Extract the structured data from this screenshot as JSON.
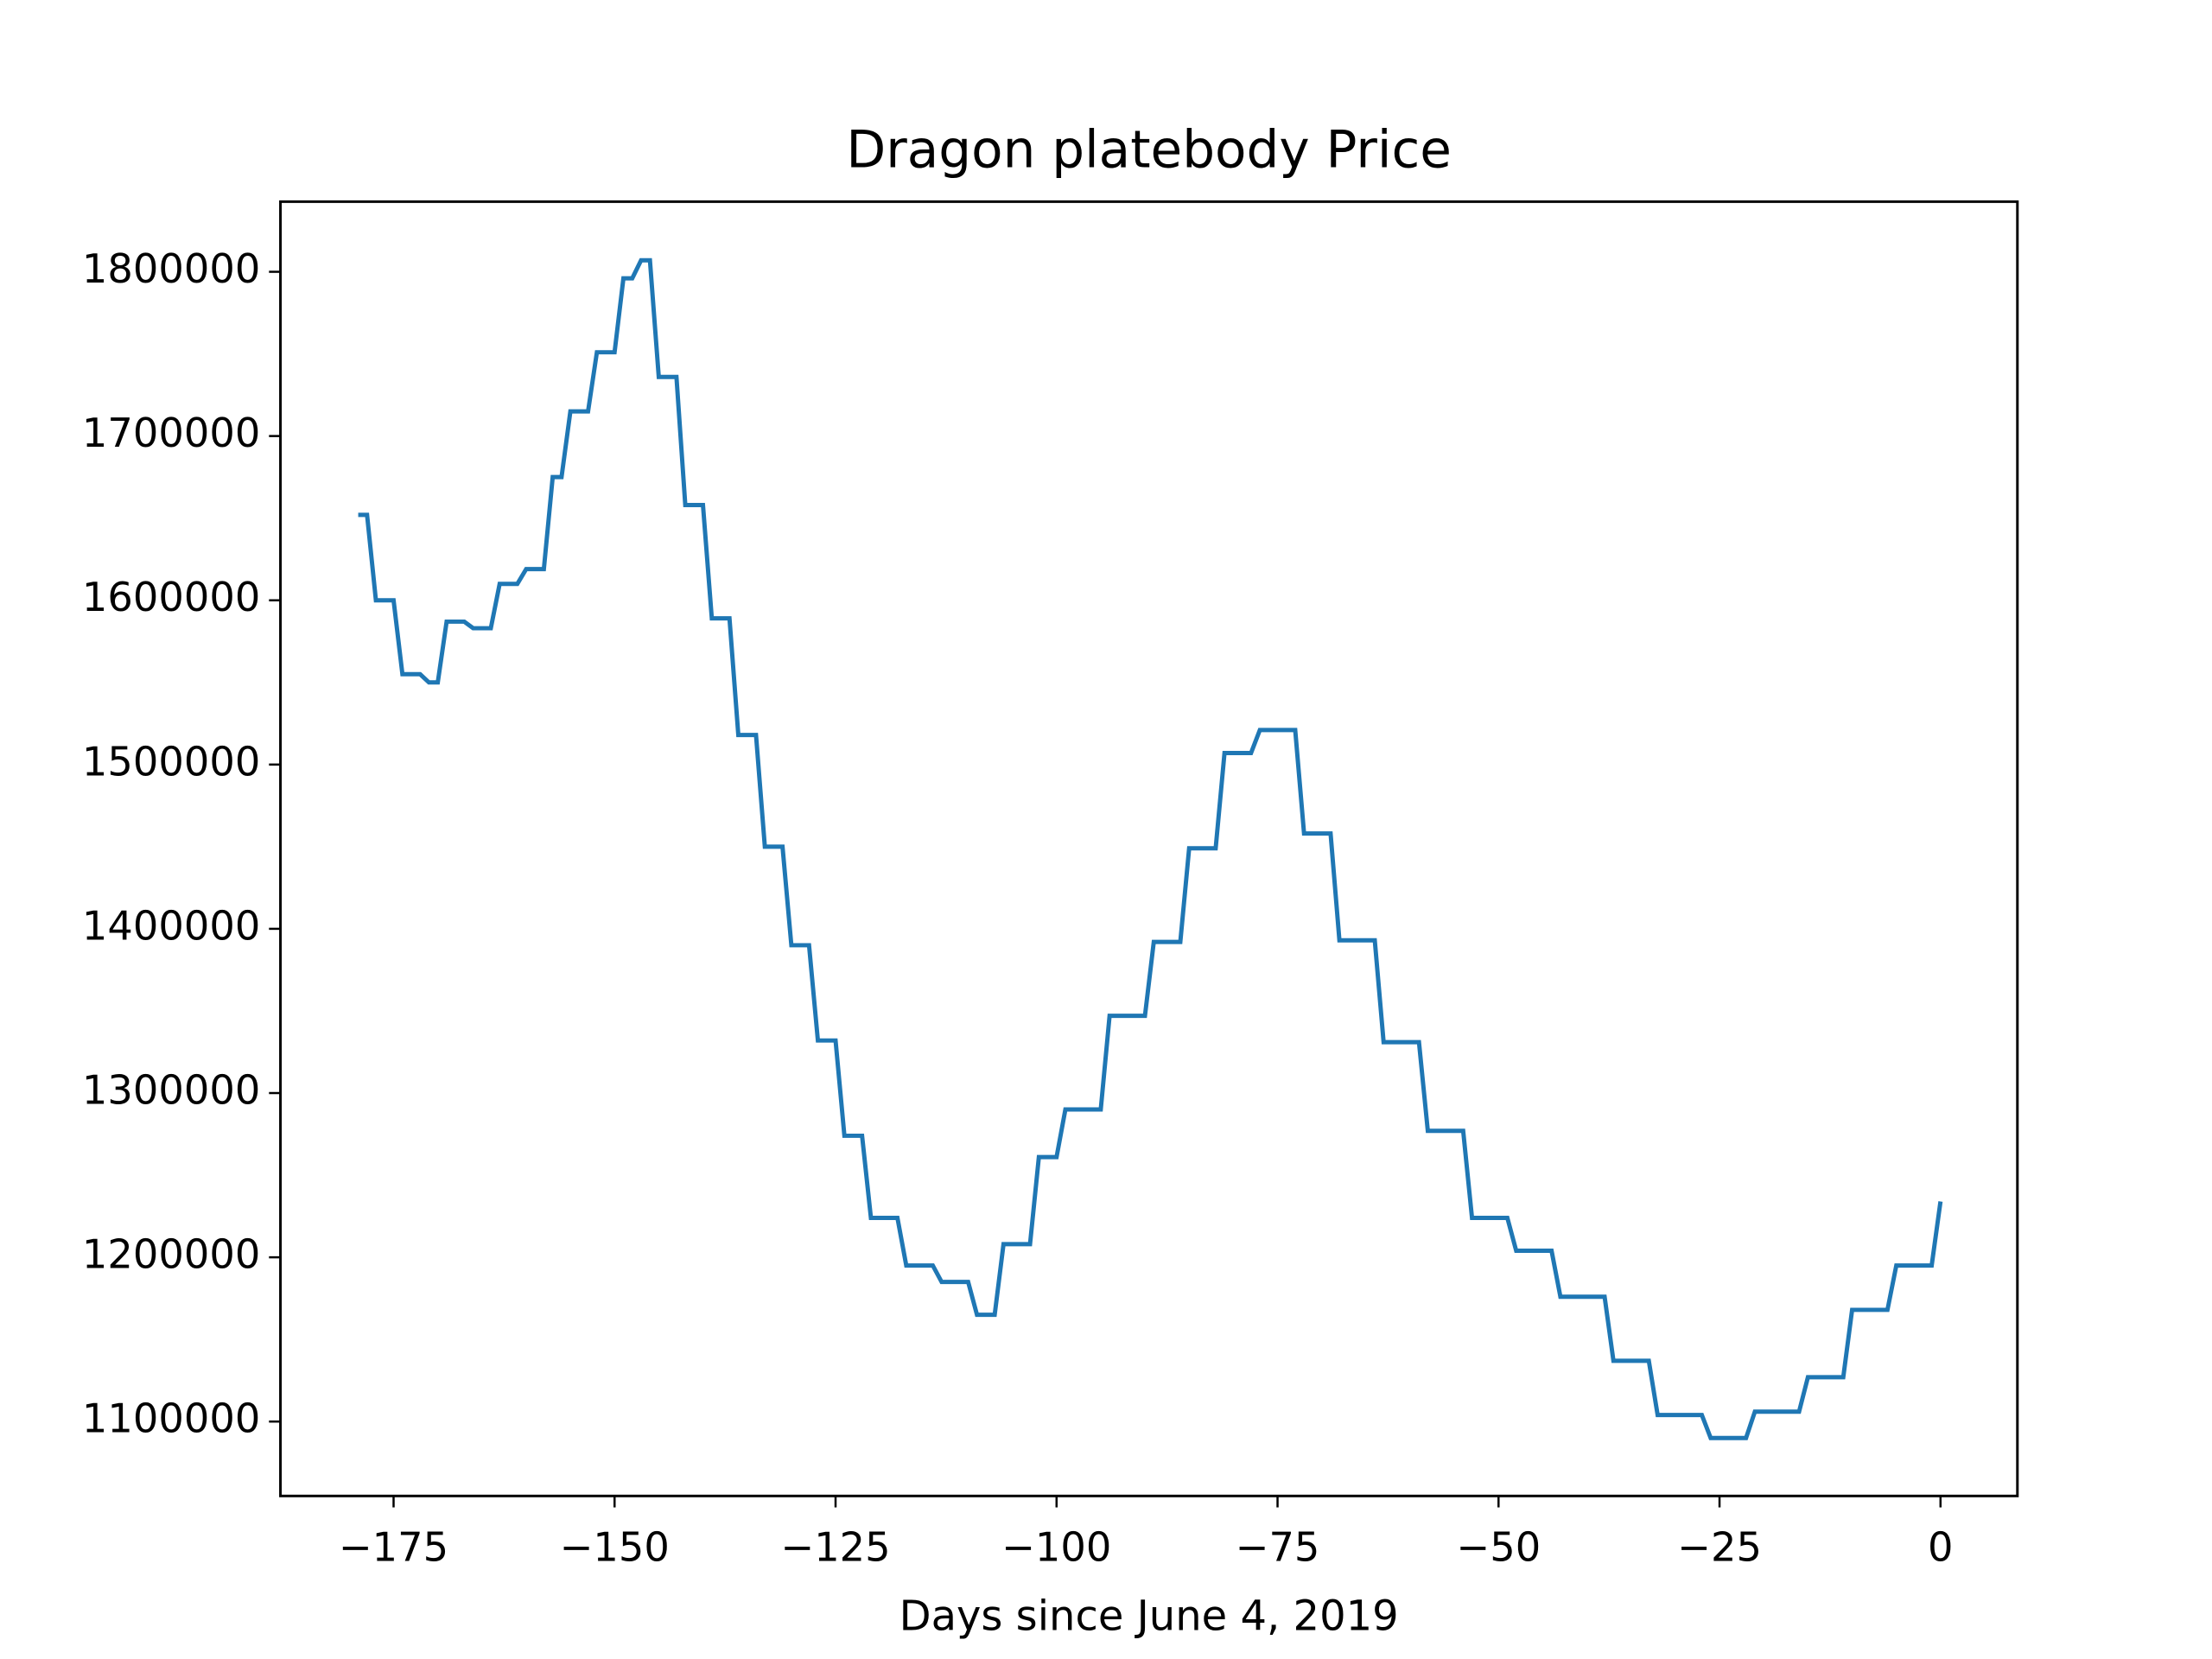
{
  "chart_data": {
    "type": "line",
    "title": "Dragon platebody Price",
    "xlabel": "Days since June 4, 2019",
    "xlim": [
      -187.8,
      8.7
    ],
    "ylim": [
      1054700,
      1842700
    ],
    "xticks": [
      {
        "value": -175,
        "label": "−175"
      },
      {
        "value": -150,
        "label": "−150"
      },
      {
        "value": -125,
        "label": "−125"
      },
      {
        "value": -100,
        "label": "−100"
      },
      {
        "value": -75,
        "label": "−75"
      },
      {
        "value": -50,
        "label": "−50"
      },
      {
        "value": -25,
        "label": "−25"
      },
      0
    ],
    "yticks": [
      1100000,
      1200000,
      1300000,
      1400000,
      1500000,
      1600000,
      1700000,
      1800000
    ],
    "series": [
      {
        "color": "#1f77b4",
        "x": [
          -179,
          -178,
          -177,
          -175,
          -174,
          -172,
          -171,
          -170,
          -169,
          -167,
          -166,
          -164,
          -163,
          -161,
          -160,
          -158,
          -157,
          -156,
          -155,
          -153,
          -152,
          -150,
          -149,
          -148,
          -147,
          -146,
          -145,
          -143,
          -142,
          -140,
          -139,
          -137,
          -136,
          -134,
          -133,
          -131,
          -130,
          -128,
          -127,
          -125,
          -124,
          -122,
          -121,
          -118,
          -117,
          -114,
          -113,
          -110,
          -109,
          -107,
          -106,
          -103,
          -102,
          -100,
          -99,
          -95,
          -94,
          -90,
          -89,
          -86,
          -85,
          -82,
          -81,
          -78,
          -77,
          -73,
          -72,
          -69,
          -68,
          -64,
          -63,
          -59,
          -58,
          -54,
          -53,
          -49,
          -48,
          -44,
          -43,
          -38,
          -37,
          -33,
          -32,
          -27,
          -26,
          -22,
          -21,
          -16,
          -15,
          -11,
          -10,
          -6,
          -5,
          -1,
          0
        ],
        "values": [
          1652000,
          1652000,
          1600000,
          1600000,
          1555000,
          1555000,
          1550000,
          1550000,
          1587000,
          1587000,
          1583000,
          1583000,
          1610000,
          1610000,
          1619000,
          1619000,
          1675000,
          1675000,
          1715000,
          1715000,
          1751000,
          1751000,
          1796000,
          1796000,
          1807000,
          1807000,
          1736000,
          1736000,
          1658000,
          1658000,
          1589000,
          1589000,
          1518000,
          1518000,
          1450000,
          1450000,
          1390000,
          1390000,
          1332000,
          1332000,
          1274000,
          1274000,
          1224000,
          1224000,
          1195000,
          1195000,
          1185000,
          1185000,
          1165000,
          1165000,
          1208000,
          1208000,
          1261000,
          1261000,
          1290000,
          1290000,
          1347000,
          1347000,
          1392000,
          1392000,
          1449000,
          1449000,
          1507000,
          1507000,
          1521000,
          1521000,
          1458000,
          1458000,
          1393000,
          1393000,
          1331000,
          1331000,
          1277000,
          1277000,
          1224000,
          1224000,
          1204000,
          1204000,
          1176000,
          1176000,
          1137000,
          1137000,
          1104000,
          1104000,
          1090000,
          1090000,
          1106000,
          1106000,
          1127000,
          1127000,
          1168000,
          1168000,
          1195000,
          1195000,
          1234000
        ]
      }
    ]
  }
}
